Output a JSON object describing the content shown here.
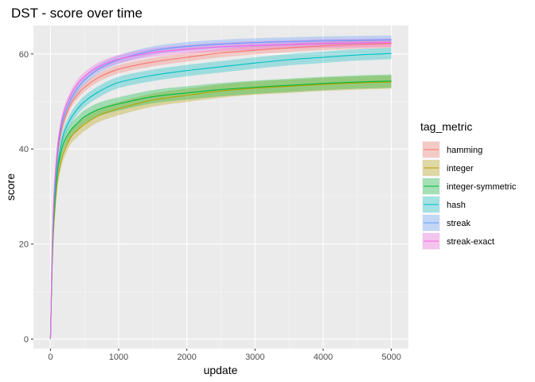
{
  "chart_data": {
    "type": "line",
    "title": "DST - score over time",
    "xlabel": "update",
    "ylabel": "score",
    "xlim": [
      -250,
      5250
    ],
    "ylim": [
      -2,
      66
    ],
    "x_ticks": [
      0,
      1000,
      2000,
      3000,
      4000,
      5000
    ],
    "x_tick_labels": [
      "0",
      "1000",
      "2000",
      "3000",
      "4000",
      "5000"
    ],
    "y_ticks": [
      0,
      20,
      40,
      60
    ],
    "y_tick_labels": [
      "0",
      "20",
      "40",
      "60"
    ],
    "grid": true,
    "legend": {
      "title": "tag_metric",
      "position": "right"
    },
    "x": [
      0,
      25,
      50,
      100,
      150,
      200,
      300,
      400,
      500,
      700,
      1000,
      1500,
      2000,
      2500,
      3000,
      3500,
      4000,
      4500,
      5000
    ],
    "series": [
      {
        "name": "hamming",
        "color": "#F8766D",
        "values": [
          0,
          18,
          28,
          38,
          43,
          46,
          49.5,
          51.5,
          53,
          55,
          56.8,
          58.3,
          59.3,
          60.2,
          60.8,
          61.3,
          61.7,
          62.0,
          62.2
        ],
        "band": 0.9
      },
      {
        "name": "integer",
        "color": "#B79F00",
        "values": [
          0,
          15,
          24,
          33,
          37,
          39.5,
          42.5,
          44,
          45.2,
          47,
          48.5,
          50.3,
          51.3,
          52.2,
          52.8,
          53.2,
          53.6,
          53.9,
          54.1
        ],
        "band": 1.4
      },
      {
        "name": "integer-symmetric",
        "color": "#00BA38",
        "values": [
          0,
          16,
          26,
          35,
          39,
          41.5,
          44,
          45.5,
          46.8,
          48.3,
          49.5,
          51.0,
          51.8,
          52.5,
          53.0,
          53.4,
          53.8,
          54.1,
          54.3
        ],
        "band": 1.4
      },
      {
        "name": "hash",
        "color": "#00BFC4",
        "values": [
          0,
          17,
          27,
          36,
          40.5,
          43.5,
          46.5,
          48.5,
          50,
          52,
          54,
          55.5,
          56.5,
          57.3,
          58.1,
          58.8,
          59.3,
          59.8,
          60.1
        ],
        "band": 1.2
      },
      {
        "name": "streak",
        "color": "#619CFF",
        "values": [
          0,
          18,
          29,
          39,
          44,
          47,
          50.5,
          52.8,
          54.5,
          56.8,
          58.8,
          60.7,
          61.6,
          62.1,
          62.4,
          62.6,
          62.8,
          62.9,
          63.0
        ],
        "band": 0.9
      },
      {
        "name": "streak-exact",
        "color": "#F564E3",
        "values": [
          0,
          19,
          30,
          40,
          45,
          48,
          51.5,
          53.8,
          55.3,
          57.3,
          58.9,
          60.3,
          61.0,
          61.5,
          61.8,
          62.0,
          62.2,
          62.3,
          62.4
        ],
        "band": 0.9
      }
    ]
  }
}
